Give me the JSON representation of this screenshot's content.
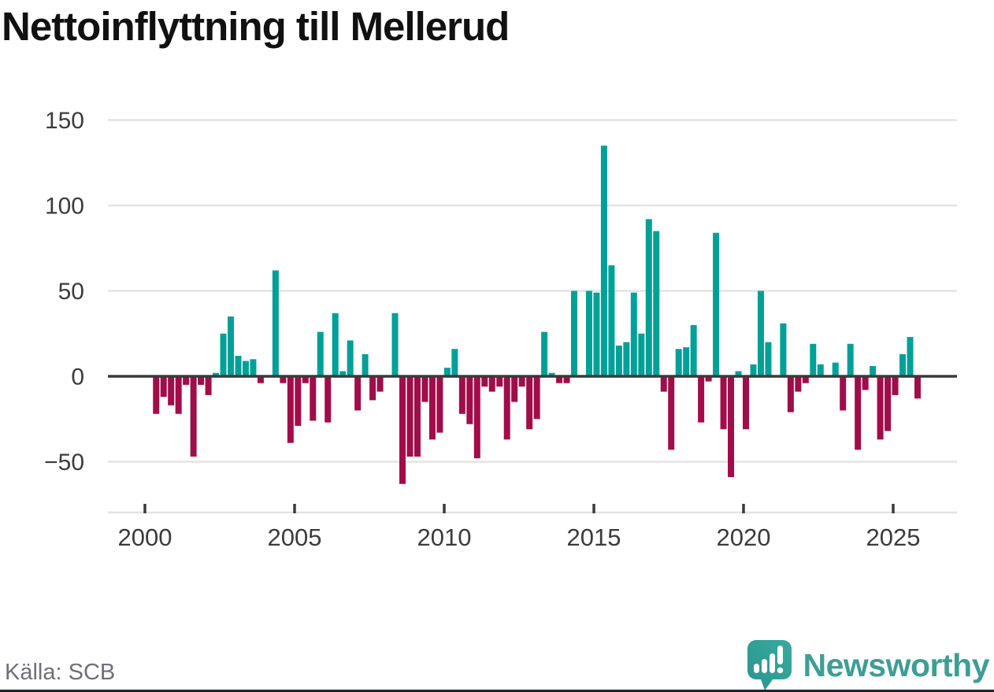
{
  "title": "Nettoinflyttning till Mellerud",
  "source": "Källa: SCB",
  "logo": {
    "text": "Newsworthy"
  },
  "colors": {
    "positive": "#00a099",
    "negative": "#a00d49",
    "zero_line": "#3a3a3a",
    "gridline": "#e3e3e3",
    "tick_label": "#3b3b3b",
    "title": "#111111",
    "source_text": "#6f6f78",
    "logo_teal": "#3f9d95",
    "bottom_strip": "#1c2634"
  },
  "chart_data": {
    "type": "bar",
    "title": "Nettoinflyttning till Mellerud",
    "x_unit": "quarter",
    "x_range": [
      "2000Q1",
      "2025Q4"
    ],
    "x_ticks": [
      2000,
      2005,
      2010,
      2015,
      2020,
      2025
    ],
    "y_ticks": [
      150,
      100,
      50,
      0,
      -50
    ],
    "ylim": [
      -80,
      155
    ],
    "grid": "horizontal",
    "values": [
      0,
      -22,
      -12,
      -17,
      -22,
      -5,
      -47,
      -5,
      -11,
      2,
      25,
      35,
      12,
      9,
      10,
      -4,
      0,
      62,
      -4,
      -39,
      -29,
      -4,
      -26,
      26,
      -27,
      37,
      3,
      21,
      -20,
      13,
      -14,
      -9,
      0,
      37,
      -63,
      -47,
      -47,
      -15,
      -37,
      -33,
      5,
      16,
      -22,
      -28,
      -48,
      -6,
      -9,
      -6,
      -37,
      -15,
      -6,
      -31,
      -25,
      26,
      2,
      -4,
      -4,
      50,
      0,
      50,
      49,
      135,
      65,
      18,
      20,
      49,
      25,
      92,
      85,
      -9,
      -43,
      16,
      17,
      30,
      -27,
      -3,
      84,
      -31,
      -59,
      3,
      -31,
      7,
      50,
      20,
      0,
      31,
      -21,
      -9,
      -4,
      19,
      7,
      0,
      8,
      -20,
      19,
      -43,
      -8,
      6,
      -37,
      -32,
      -11,
      13,
      23,
      -13
    ]
  }
}
